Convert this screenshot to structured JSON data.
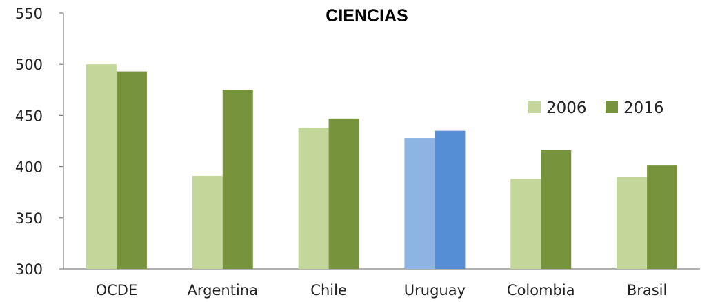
{
  "chart_data": {
    "type": "bar",
    "title": "CIENCIAS",
    "xlabel": "",
    "ylabel": "",
    "ylim": [
      300,
      550
    ],
    "yticks": [
      "300",
      "350",
      "400",
      "450",
      "500",
      "550"
    ],
    "grid": false,
    "legend_position": "right",
    "categories": [
      "OCDE",
      "Argentina",
      "Chile",
      "Uruguay",
      "Colombia",
      "Brasil"
    ],
    "series": [
      {
        "name": "2006",
        "color": "#c4d79b",
        "values": [
          500,
          391,
          438,
          428,
          388,
          390
        ]
      },
      {
        "name": "2016",
        "color": "#77933c",
        "values": [
          493,
          475,
          447,
          435,
          416,
          401
        ]
      }
    ],
    "highlight": {
      "category": "Uruguay",
      "colors": [
        "#8eb4e3",
        "#558ed5"
      ]
    },
    "axis_color": "#808080"
  }
}
